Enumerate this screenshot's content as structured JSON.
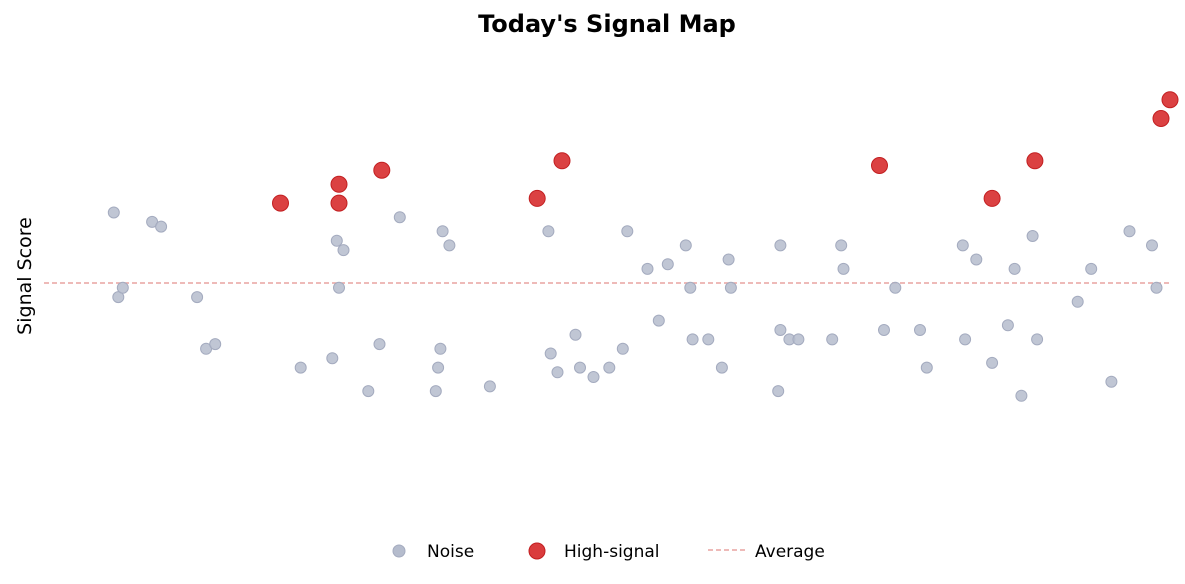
{
  "chart_data": {
    "type": "scatter",
    "title": "Today's Signal Map",
    "xlabel": "",
    "ylabel": "Signal Score",
    "xlim": [
      -0.5,
      49.5
    ],
    "ylim": [
      0,
      10
    ],
    "grid": false,
    "legend_position": "bottom-center",
    "legend_labels": [
      "Noise",
      "High-signal",
      "Average"
    ],
    "colors": {
      "noise": "#b5bccd",
      "high": "#d62728",
      "average": "#e8a3a0"
    },
    "average": 5.0,
    "series": [
      {
        "name": "Noise",
        "points": [
          [
            2.6,
            6.5
          ],
          [
            2.8,
            4.7
          ],
          [
            3.0,
            4.9
          ],
          [
            4.3,
            6.3
          ],
          [
            4.7,
            6.2
          ],
          [
            6.3,
            4.7
          ],
          [
            6.7,
            3.6
          ],
          [
            7.1,
            3.7
          ],
          [
            10.9,
            3.2
          ],
          [
            12.3,
            3.4
          ],
          [
            12.5,
            5.9
          ],
          [
            12.8,
            5.7
          ],
          [
            12.6,
            4.9
          ],
          [
            13.9,
            2.7
          ],
          [
            14.4,
            3.7
          ],
          [
            15.3,
            6.4
          ],
          [
            16.9,
            2.7
          ],
          [
            17.0,
            3.2
          ],
          [
            17.1,
            3.6
          ],
          [
            17.2,
            6.1
          ],
          [
            17.5,
            5.8
          ],
          [
            19.3,
            2.8
          ],
          [
            22.0,
            3.5
          ],
          [
            21.9,
            6.1
          ],
          [
            22.3,
            3.1
          ],
          [
            23.1,
            3.9
          ],
          [
            23.3,
            3.2
          ],
          [
            23.9,
            3.0
          ],
          [
            24.6,
            3.2
          ],
          [
            25.2,
            3.6
          ],
          [
            25.4,
            6.1
          ],
          [
            26.3,
            5.3
          ],
          [
            26.8,
            4.2
          ],
          [
            27.2,
            5.4
          ],
          [
            28.0,
            5.8
          ],
          [
            28.2,
            4.9
          ],
          [
            28.3,
            3.8
          ],
          [
            29.0,
            3.8
          ],
          [
            29.6,
            3.2
          ],
          [
            29.9,
            5.5
          ],
          [
            30.0,
            4.9
          ],
          [
            32.1,
            2.7
          ],
          [
            32.2,
            4.0
          ],
          [
            32.2,
            5.8
          ],
          [
            32.6,
            3.8
          ],
          [
            33.0,
            3.8
          ],
          [
            34.5,
            3.8
          ],
          [
            34.9,
            5.8
          ],
          [
            35.0,
            5.3
          ],
          [
            36.8,
            4.0
          ],
          [
            37.3,
            4.9
          ],
          [
            38.4,
            4.0
          ],
          [
            38.7,
            3.2
          ],
          [
            40.3,
            5.8
          ],
          [
            40.4,
            3.8
          ],
          [
            40.9,
            5.5
          ],
          [
            41.6,
            3.3
          ],
          [
            42.3,
            4.1
          ],
          [
            42.6,
            5.3
          ],
          [
            42.9,
            2.6
          ],
          [
            43.4,
            6.0
          ],
          [
            43.6,
            3.8
          ],
          [
            45.4,
            4.6
          ],
          [
            46.0,
            5.3
          ],
          [
            46.9,
            2.9
          ],
          [
            47.7,
            6.1
          ],
          [
            48.7,
            5.8
          ],
          [
            48.9,
            4.9
          ]
        ]
      },
      {
        "name": "High-signal",
        "points": [
          [
            10.0,
            6.7
          ],
          [
            12.6,
            7.1
          ],
          [
            12.6,
            6.7
          ],
          [
            14.5,
            7.4
          ],
          [
            21.4,
            6.8
          ],
          [
            22.5,
            7.6
          ],
          [
            36.6,
            7.5
          ],
          [
            41.6,
            6.8
          ],
          [
            43.5,
            7.6
          ],
          [
            49.1,
            8.5
          ],
          [
            49.5,
            8.9
          ]
        ]
      }
    ]
  }
}
